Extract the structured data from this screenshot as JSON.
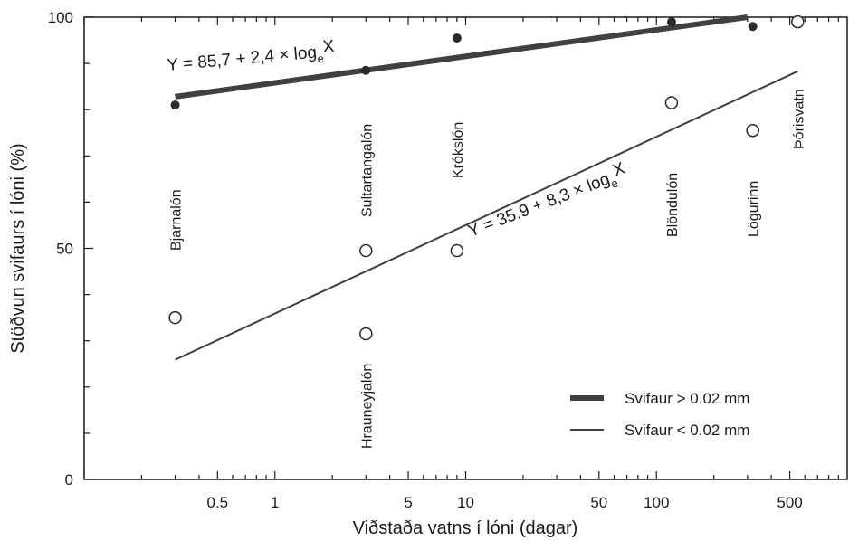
{
  "chart_data": {
    "type": "scatter",
    "xlabel": "Viðstaða vatns í lóni  (dagar)",
    "ylabel": "Stöðvun svifaurs í lóni  (%)",
    "x_scale": "log",
    "xlim": [
      0.1,
      1000
    ],
    "ylim": [
      0,
      100
    ],
    "x_ticks": [
      {
        "value": 0.5,
        "label": "0.5"
      },
      {
        "value": 1,
        "label": "1"
      },
      {
        "value": 5,
        "label": "5"
      },
      {
        "value": 10,
        "label": "10"
      },
      {
        "value": 50,
        "label": "50"
      },
      {
        "value": 100,
        "label": "100"
      },
      {
        "value": 500,
        "label": "500"
      }
    ],
    "y_ticks": [
      {
        "value": 0,
        "label": "0"
      },
      {
        "value": 50,
        "label": "50"
      },
      {
        "value": 100,
        "label": "100"
      }
    ],
    "site_labels": [
      {
        "text": "Bjarnalón",
        "x": 0.3
      },
      {
        "text": "Sultartangalón",
        "x": 3
      },
      {
        "text": "Krókslón",
        "x": 9
      },
      {
        "text": "Hrauneyjalón",
        "x": 3
      },
      {
        "text": "Blöndulón",
        "x": 120
      },
      {
        "text": "Lögurinn",
        "x": 320
      },
      {
        "text": "Þórisvatn",
        "x": 550
      }
    ],
    "series": [
      {
        "name": "Svifaur  > 0.02 mm",
        "marker": "filled",
        "equation": {
          "prefix": "Y = 85,7 + 2,4 × log",
          "sub": "e",
          "suffix": "X"
        },
        "line": {
          "x": [
            0.3,
            300
          ],
          "y": [
            82.8,
            100
          ]
        },
        "points": [
          {
            "x": 0.3,
            "y": 81
          },
          {
            "x": 3,
            "y": 88.5
          },
          {
            "x": 9,
            "y": 95.5
          },
          {
            "x": 120,
            "y": 99
          },
          {
            "x": 320,
            "y": 98
          }
        ]
      },
      {
        "name": "Svifaur  < 0.02 mm",
        "marker": "open",
        "equation": {
          "prefix": "Y = 35,9 + 8,3 × log",
          "sub": "e",
          "suffix": "X"
        },
        "line": {
          "x": [
            0.3,
            550
          ],
          "y": [
            25.9,
            88.3
          ]
        },
        "points": [
          {
            "x": 0.3,
            "y": 35
          },
          {
            "x": 3,
            "y": 49.5
          },
          {
            "x": 3,
            "y": 31.5
          },
          {
            "x": 9,
            "y": 49.5
          },
          {
            "x": 120,
            "y": 81.5
          },
          {
            "x": 320,
            "y": 75.5
          },
          {
            "x": 550,
            "y": 99
          }
        ]
      }
    ],
    "colors": {
      "axis": "#1a1a1a",
      "line": "#404040",
      "marker": "#2a2a2a"
    },
    "grid": false,
    "legend_position": "bottom-right"
  }
}
